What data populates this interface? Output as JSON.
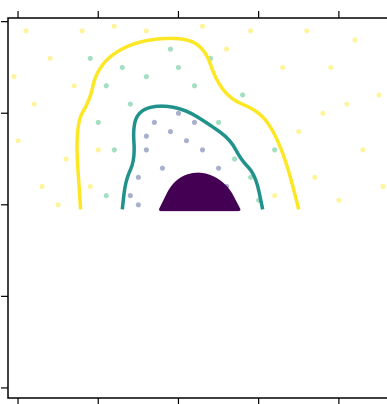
{
  "chart_data": {
    "type": "scatter",
    "xlim": [
      -0.125,
      4.6
    ],
    "ylim": [
      -0.11,
      4.04
    ],
    "xticks": [
      0,
      1,
      2,
      3,
      4
    ],
    "yticks": [
      0,
      1,
      2,
      3,
      4
    ],
    "series": [
      {
        "color": "#fde725",
        "x": [
          0.1,
          0.4,
          0.2,
          0.6,
          0.3,
          0.0,
          0.8,
          1.2,
          0.5,
          -0.05,
          3.6,
          3.9,
          4.2,
          4.5,
          4.3,
          3.7,
          4.0,
          3.5,
          3.3,
          2.9,
          2.6,
          4.55,
          3.8,
          0.9,
          1.0,
          3.2,
          0.7,
          2.3,
          1.6,
          4.1
        ],
        "y": [
          3.9,
          3.6,
          3.1,
          2.5,
          2.2,
          2.7,
          3.9,
          3.95,
          2.0,
          3.4,
          3.9,
          3.5,
          3.8,
          3.2,
          2.6,
          2.3,
          2.05,
          2.8,
          3.5,
          3.9,
          3.7,
          2.2,
          3.0,
          2.2,
          2.6,
          2.1,
          3.3,
          3.95,
          3.9,
          3.1
        ]
      },
      {
        "color": "#35b779",
        "x": [
          1.1,
          1.3,
          1.6,
          2.0,
          2.2,
          1.0,
          1.2,
          2.5,
          2.7,
          2.9,
          1.1,
          3.0,
          1.4,
          2.4,
          0.9,
          2.8,
          1.9,
          3.2
        ],
        "y": [
          3.3,
          3.5,
          3.4,
          3.5,
          3.3,
          2.9,
          2.6,
          2.9,
          2.5,
          2.3,
          2.1,
          2.05,
          3.1,
          3.6,
          3.6,
          3.2,
          3.7,
          2.6
        ]
      },
      {
        "color": "#3b528b",
        "x": [
          1.5,
          1.6,
          1.7,
          1.9,
          2.1,
          2.3,
          2.5,
          2.6,
          1.5,
          1.8,
          2.2,
          2.0,
          1.4,
          2.7,
          1.6,
          2.4
        ],
        "y": [
          2.3,
          2.6,
          2.9,
          2.8,
          2.7,
          2.6,
          2.4,
          2.2,
          2.0,
          2.4,
          2.9,
          3.0,
          2.1,
          2.0,
          2.75,
          2.1
        ]
      }
    ],
    "contours": [
      {
        "color": "#fde725",
        "x": [
          0.78,
          0.71,
          0.9,
          0.96,
          1.15,
          1.53,
          2.09,
          2.34,
          2.46,
          2.65,
          2.96,
          3.15,
          3.34,
          3.5
        ],
        "y": [
          1.95,
          2.87,
          3.15,
          3.42,
          3.64,
          3.8,
          3.83,
          3.69,
          3.37,
          3.15,
          3.04,
          2.87,
          2.49,
          1.95
        ]
      },
      {
        "color": "#21918c",
        "x": [
          1.3,
          1.34,
          1.46,
          1.43,
          1.53,
          1.78,
          2.09,
          2.4,
          2.65,
          2.78,
          2.96,
          3.05
        ],
        "y": [
          1.95,
          2.27,
          2.49,
          2.87,
          3.04,
          3.09,
          3.04,
          2.87,
          2.71,
          2.49,
          2.33,
          1.95
        ]
      },
      {
        "color": "#440154",
        "filled": true,
        "x": [
          1.78,
          1.96,
          2.28,
          2.59,
          2.75
        ],
        "y": [
          1.95,
          2.27,
          2.36,
          2.22,
          1.95
        ]
      }
    ]
  }
}
